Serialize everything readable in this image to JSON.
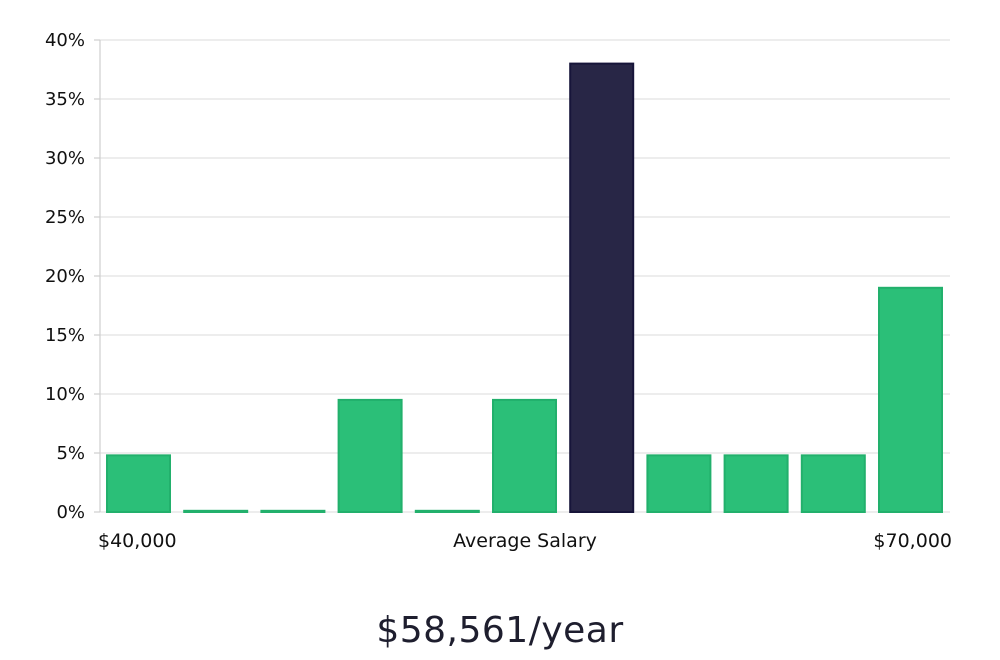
{
  "chart_data": {
    "type": "bar",
    "y_ticks": [
      "0%",
      "5%",
      "10%",
      "15%",
      "20%",
      "25%",
      "30%",
      "35%",
      "40%"
    ],
    "ylim": [
      0,
      40
    ],
    "x_labels": {
      "left": "$40,000",
      "center": "Average Salary",
      "right": "$70,000"
    },
    "values": [
      4.8,
      0.1,
      0.1,
      9.5,
      0.1,
      9.5,
      38.0,
      4.8,
      4.8,
      4.8,
      19.0
    ],
    "highlight_index": 6,
    "grid": true,
    "colors": {
      "bar": "#2bbf78",
      "bar_edge": "#22b06c",
      "highlight": "#282646",
      "highlight_edge": "#17153a",
      "grid": "#e2e2e2",
      "axis": "#cfcfcf"
    }
  },
  "summary": {
    "text": "$58,561/year"
  }
}
